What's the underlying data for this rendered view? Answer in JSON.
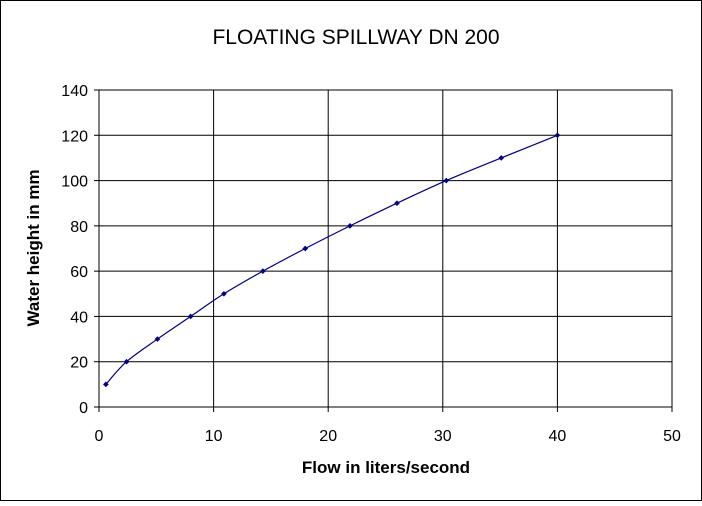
{
  "chart_data": {
    "type": "line",
    "title": "FLOATING SPILLWAY DN 200",
    "xlabel": "Flow in liters/second",
    "ylabel": "Water height in mm",
    "xlim": [
      0,
      50
    ],
    "ylim": [
      0,
      140
    ],
    "x_ticks": [
      "0",
      "10",
      "20",
      "30",
      "40",
      "50"
    ],
    "y_ticks": [
      "0",
      "20",
      "40",
      "60",
      "80",
      "100",
      "120",
      "140"
    ],
    "grid": true,
    "legend": "none",
    "colors": {
      "line": "#00007f",
      "marker": "#00007f",
      "grid": "#000000",
      "plot_border": "#000000"
    },
    "series": [
      {
        "x": [
          0.6,
          2.4,
          5.1,
          8.0,
          10.9,
          14.3,
          18.0,
          21.9,
          26.0,
          30.3,
          35.1,
          40.0
        ],
        "y": [
          10,
          20,
          30,
          40,
          50,
          60,
          70,
          80,
          90,
          100,
          110,
          120
        ]
      }
    ]
  }
}
